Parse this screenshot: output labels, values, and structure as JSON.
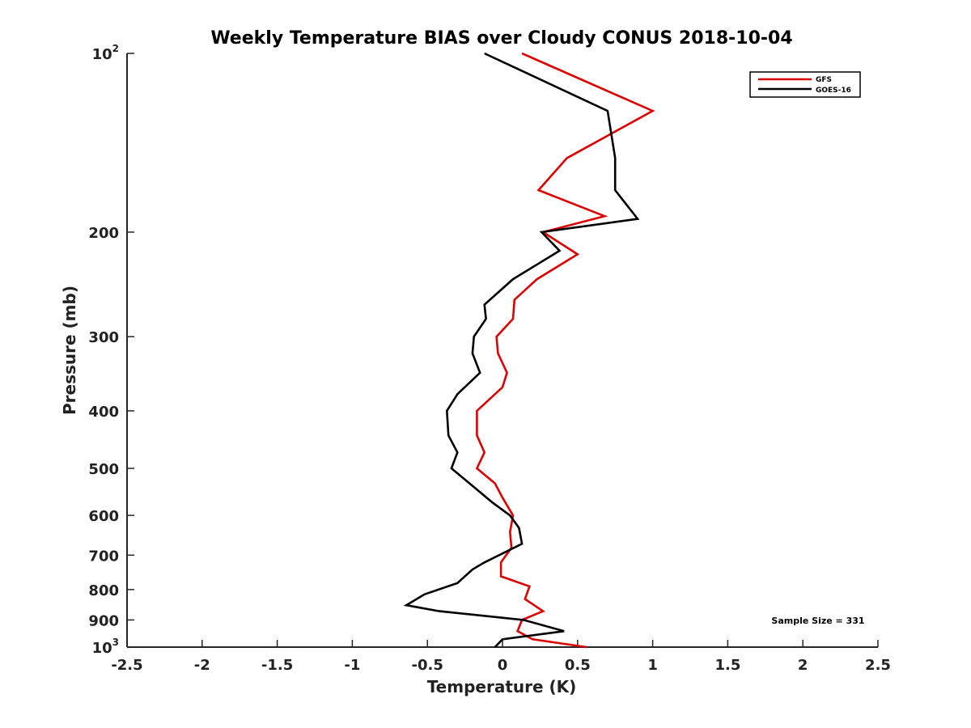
{
  "chart_data": {
    "type": "line",
    "title": "Weekly Temperature BIAS over Cloudy CONUS 2018-10-04",
    "xlabel": "Temperature (K)",
    "ylabel": "Pressure (mb)",
    "xlim": [
      -2.5,
      2.5
    ],
    "ylim": [
      1000,
      100
    ],
    "y_scale": "log",
    "y_reversed": true,
    "x_ticks": [
      -2.5,
      -2,
      -1.5,
      -1,
      -0.5,
      0,
      0.5,
      1,
      1.5,
      2,
      2.5
    ],
    "x_tick_labels": [
      "-2.5",
      "-2",
      "-1.5",
      "-1",
      "-0.5",
      "0",
      "0.5",
      "1",
      "1.5",
      "2",
      "2.5"
    ],
    "y_ticks": [
      {
        "value": 100,
        "label": "10",
        "sup": "2"
      },
      {
        "value": 200,
        "label": "200",
        "sup": ""
      },
      {
        "value": 300,
        "label": "300",
        "sup": ""
      },
      {
        "value": 400,
        "label": "400",
        "sup": ""
      },
      {
        "value": 500,
        "label": "500",
        "sup": ""
      },
      {
        "value": 600,
        "label": "600",
        "sup": ""
      },
      {
        "value": 700,
        "label": "700",
        "sup": ""
      },
      {
        "value": 800,
        "label": "800",
        "sup": ""
      },
      {
        "value": 900,
        "label": "900",
        "sup": ""
      },
      {
        "value": 1000,
        "label": "10",
        "sup": "3"
      }
    ],
    "grid": false,
    "legend_position": "top-right",
    "series": [
      {
        "name": "GFS",
        "color": "#dd0000",
        "points": [
          [
            0.13,
            100
          ],
          [
            1.0,
            125
          ],
          [
            0.43,
            150
          ],
          [
            0.24,
            170
          ],
          [
            0.68,
            188
          ],
          [
            0.27,
            200
          ],
          [
            0.5,
            218
          ],
          [
            0.23,
            240
          ],
          [
            0.08,
            260
          ],
          [
            0.07,
            280
          ],
          [
            -0.04,
            300
          ],
          [
            -0.03,
            320
          ],
          [
            0.03,
            345
          ],
          [
            0.0,
            365
          ],
          [
            -0.17,
            400
          ],
          [
            -0.17,
            440
          ],
          [
            -0.12,
            470
          ],
          [
            -0.17,
            500
          ],
          [
            -0.05,
            530
          ],
          [
            0.0,
            560
          ],
          [
            0.07,
            600
          ],
          [
            0.05,
            640
          ],
          [
            0.06,
            680
          ],
          [
            -0.01,
            720
          ],
          [
            -0.01,
            760
          ],
          [
            0.18,
            790
          ],
          [
            0.15,
            830
          ],
          [
            0.27,
            870
          ],
          [
            0.13,
            900
          ],
          [
            0.1,
            940
          ],
          [
            0.2,
            970
          ],
          [
            0.56,
            1000
          ]
        ]
      },
      {
        "name": "GOES-16",
        "color": "#000000",
        "points": [
          [
            -0.12,
            100
          ],
          [
            0.7,
            125
          ],
          [
            0.75,
            150
          ],
          [
            0.75,
            170
          ],
          [
            0.9,
            190
          ],
          [
            0.26,
            200
          ],
          [
            0.38,
            215
          ],
          [
            0.07,
            240
          ],
          [
            -0.12,
            265
          ],
          [
            -0.11,
            280
          ],
          [
            -0.19,
            300
          ],
          [
            -0.2,
            320
          ],
          [
            -0.15,
            345
          ],
          [
            -0.3,
            375
          ],
          [
            -0.37,
            400
          ],
          [
            -0.36,
            440
          ],
          [
            -0.3,
            470
          ],
          [
            -0.34,
            500
          ],
          [
            -0.2,
            535
          ],
          [
            -0.07,
            570
          ],
          [
            0.05,
            600
          ],
          [
            0.11,
            630
          ],
          [
            0.13,
            670
          ],
          [
            -0.12,
            720
          ],
          [
            -0.2,
            740
          ],
          [
            -0.3,
            780
          ],
          [
            -0.52,
            815
          ],
          [
            -0.64,
            850
          ],
          [
            -0.42,
            870
          ],
          [
            0.14,
            900
          ],
          [
            0.41,
            940
          ],
          [
            0.0,
            970
          ],
          [
            -0.05,
            1000
          ]
        ]
      }
    ],
    "annotation": "Sample Size = 331"
  }
}
